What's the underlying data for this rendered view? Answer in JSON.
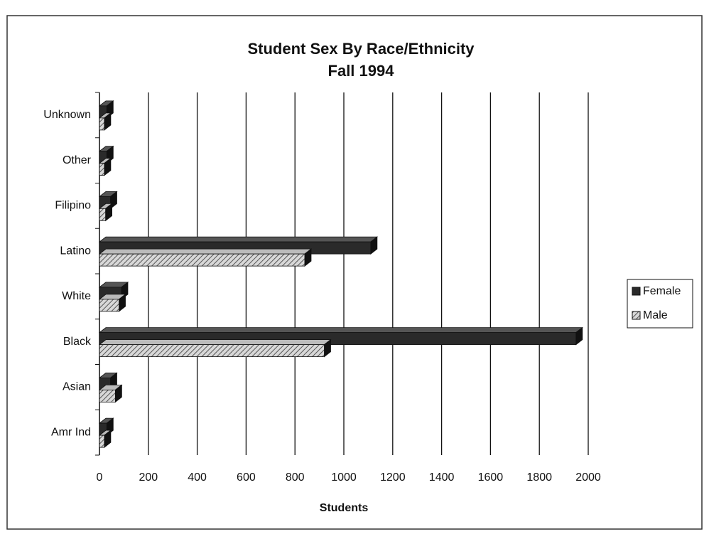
{
  "chart_data": {
    "type": "barh",
    "title": "Student Sex By Race/Ethnicity",
    "subtitle": "Fall 1994",
    "x_label": "Students",
    "categories": [
      "Unknown",
      "Other",
      "Filipino",
      "Latino",
      "White",
      "Black",
      "Asian",
      "Amr Ind"
    ],
    "series": [
      {
        "name": "Female",
        "color": "#2a2a2a",
        "values": [
          30,
          30,
          45,
          1110,
          90,
          1950,
          45,
          30
        ]
      },
      {
        "name": "Male",
        "color": "#9a9a9a",
        "hatch": true,
        "values": [
          20,
          20,
          25,
          840,
          80,
          920,
          65,
          20
        ]
      }
    ],
    "xlim": [
      0,
      2000
    ],
    "xticks": [
      0,
      200,
      400,
      600,
      800,
      1000,
      1200,
      1400,
      1600,
      1800,
      2000
    ],
    "grid": true,
    "legend": "right"
  }
}
